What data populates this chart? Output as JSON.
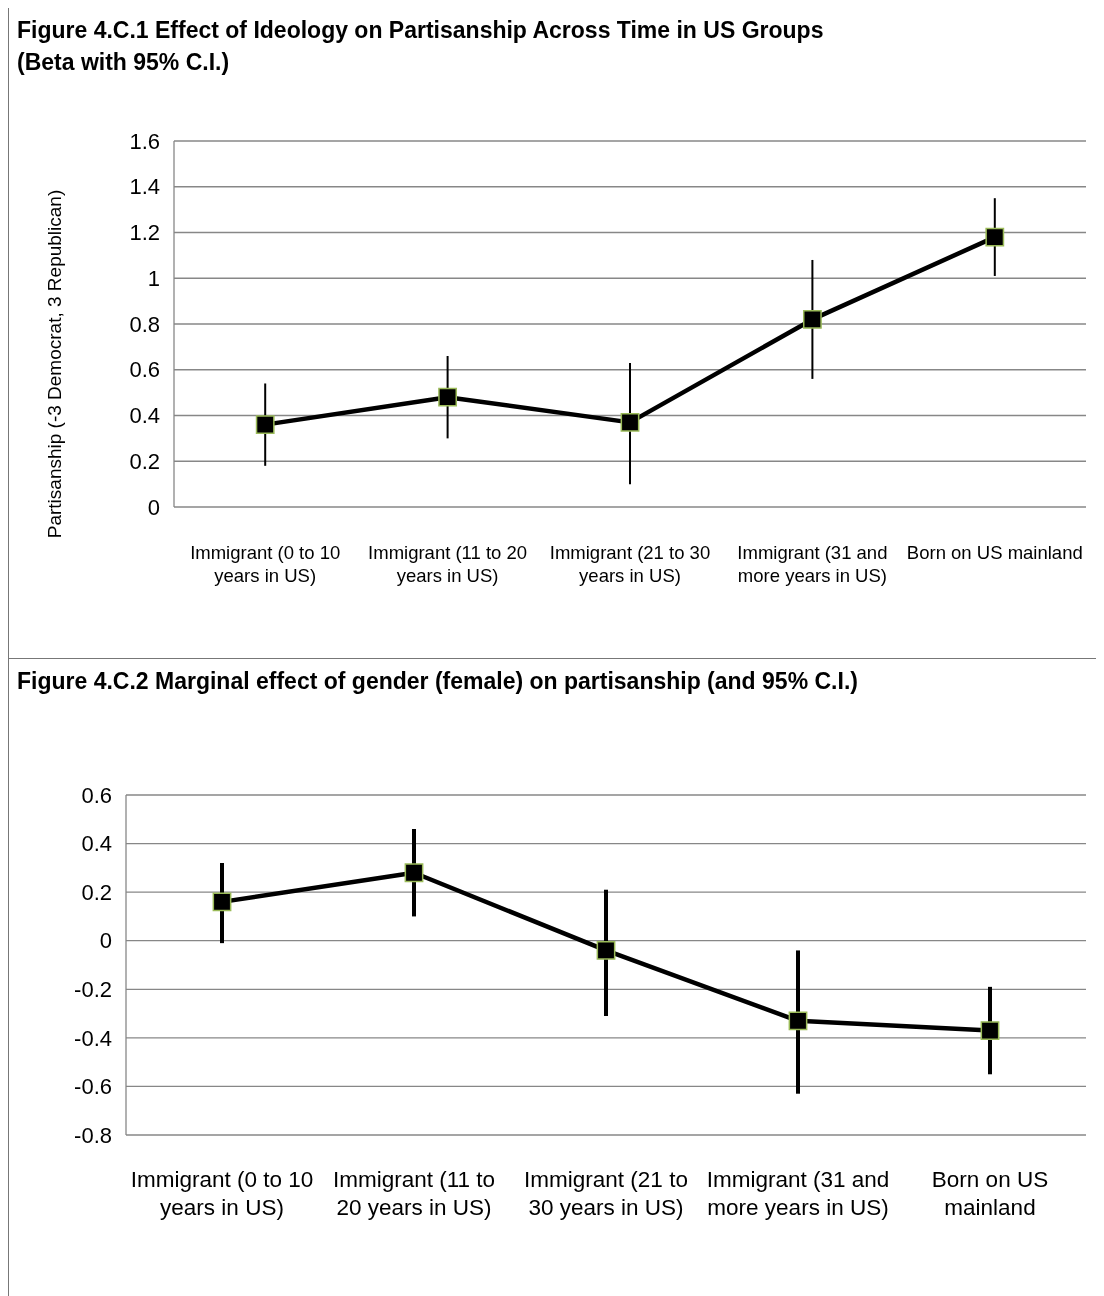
{
  "chart_data": [
    {
      "type": "line",
      "title": "Figure 4.C.1 Effect of Ideology on Partisanship Across Time in US Groups (Beta with 95% C.I.)",
      "ylabel": "Partisanship (-3 Democrat,  3 Republican)",
      "categories": [
        "Immigrant (0 to 10  years in US)",
        "Immigrant (11 to 20  years in US)",
        "Immigrant (21 to 30  years in US)",
        "Immigrant (31 and more  years in US)",
        "Born on US mainland"
      ],
      "series": [
        {
          "color": "#000000",
          "values": [
            0.36,
            0.48,
            0.37,
            0.82,
            1.18
          ],
          "errors": [
            [
              0.18,
              0.54
            ],
            [
              0.3,
              0.66
            ],
            [
              0.1,
              0.63
            ],
            [
              0.56,
              1.08
            ],
            [
              1.01,
              1.35
            ]
          ]
        }
      ],
      "ylim": [
        0,
        1.6
      ],
      "yticks": [
        0,
        0.2,
        0.4,
        0.6,
        0.8,
        1,
        1.2,
        1.4,
        1.6
      ],
      "grid": "y",
      "marker": "square",
      "line_style": "solid"
    },
    {
      "type": "line",
      "title": "Figure 4.C.2  Marginal effect of gender (female) on partisanship (and 95% C.I.)",
      "categories": [
        "Immigrant (0 to 10  years in US)",
        "Immigrant (11 to 20  years in US)",
        "Immigrant (21 to 30  years in US)",
        "Immigrant (31 and more  years in US)",
        "Born on US mainland"
      ],
      "series": [
        {
          "color": "#000000",
          "values": [
            0.16,
            0.28,
            -0.04,
            -0.33,
            -0.37
          ],
          "errors": [
            [
              -0.01,
              0.32
            ],
            [
              0.1,
              0.46
            ],
            [
              -0.31,
              0.21
            ],
            [
              -0.63,
              -0.04
            ],
            [
              -0.55,
              -0.19
            ]
          ]
        }
      ],
      "ylim": [
        -0.8,
        0.6
      ],
      "yticks": [
        -0.8,
        -0.6,
        -0.4,
        -0.2,
        0,
        0.2,
        0.4,
        0.6
      ],
      "grid": "y",
      "marker": "square",
      "line_style": "solid"
    }
  ]
}
